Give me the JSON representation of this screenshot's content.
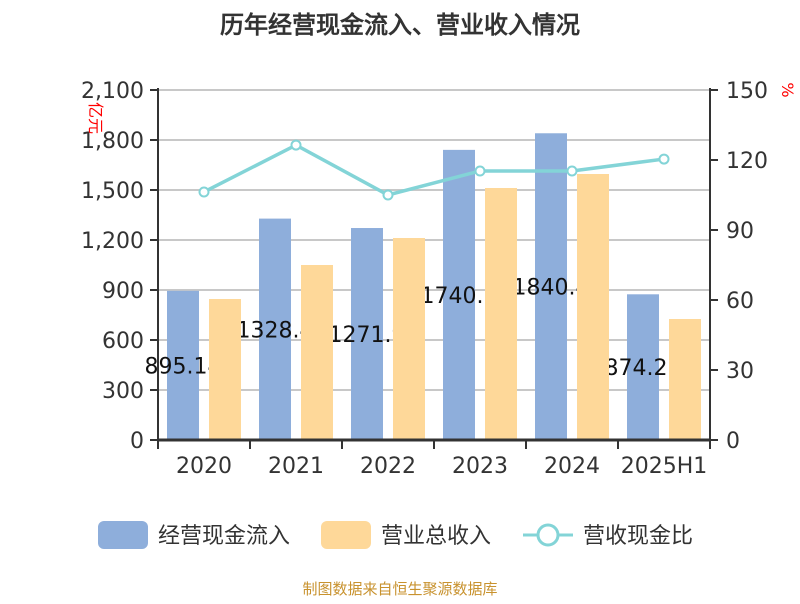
{
  "chart_data": {
    "type": "bar",
    "title": "历年经营现金流入、营业收入情况",
    "categories": [
      "2020",
      "2021",
      "2022",
      "2023",
      "2024",
      "2025H1"
    ],
    "y_left": {
      "unit": "亿元",
      "ylim": [
        0,
        2100
      ],
      "ticks": [
        "0",
        "300",
        "600",
        "900",
        "1,200",
        "1,500",
        "1,800",
        "2,100"
      ]
    },
    "y_right": {
      "unit": "%",
      "ylim": [
        0,
        150
      ],
      "ticks": [
        "0",
        "30",
        "60",
        "90",
        "120",
        "150"
      ]
    },
    "grid": true,
    "legend_position": "bottom",
    "series": [
      {
        "name": "经营现金流入",
        "type": "bar",
        "axis": "left",
        "color": "#8eaedb",
        "values": [
          895.14,
          1328.4,
          1271.9,
          1740.8,
          1840.4,
          874.22
        ],
        "labels": [
          "895.14",
          "1328.4",
          "1271.9",
          "1740.8",
          "1840.4",
          "874.22"
        ]
      },
      {
        "name": "营业总收入",
        "type": "bar",
        "axis": "right_none",
        "color": "#fed899",
        "values": [
          846,
          1050,
          1212,
          1512,
          1596,
          726
        ]
      },
      {
        "name": "营收现金比",
        "type": "line",
        "axis": "right",
        "color": "#83d4d7",
        "values": [
          106.3,
          126.4,
          105.0,
          115.3,
          115.3,
          120.4
        ]
      }
    ],
    "source": "制图数据来自恒生聚源数据库"
  }
}
